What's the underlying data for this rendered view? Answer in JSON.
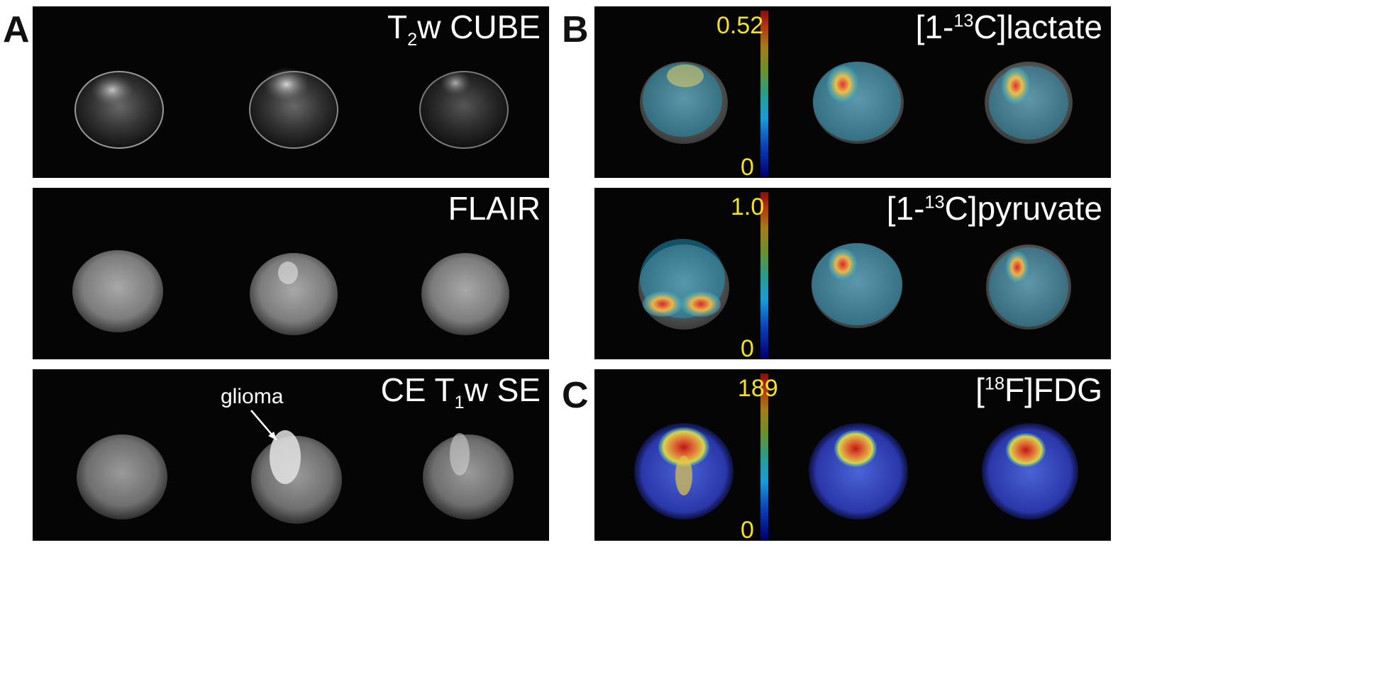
{
  "panel_letters": {
    "a": "A",
    "b": "B",
    "c": "C"
  },
  "panels": {
    "t2w": {
      "title_prefix": "T",
      "title_sub": "2",
      "title_suffix": "w CUBE"
    },
    "flair": {
      "title": "FLAIR"
    },
    "ce_t1w": {
      "title_prefix": "CE T",
      "title_sub": "1",
      "title_suffix": "w SE",
      "annotation": "glioma"
    },
    "lactate": {
      "title_prefix": "[1-",
      "title_sup": "13",
      "title_suffix": "C]lactate",
      "scale_max": "0.52",
      "scale_min": "0"
    },
    "pyruvate": {
      "title_prefix": "[1-",
      "title_sup": "13",
      "title_suffix": "C]pyruvate",
      "scale_max": "1.0",
      "scale_min": "0"
    },
    "fdg": {
      "title_prefix": "[",
      "title_sup": "18",
      "title_suffix": "F]FDG",
      "scale_max": "189",
      "scale_min": "0"
    }
  },
  "colors": {
    "panel_background": "#050505",
    "scale_label": "#f2e02a",
    "title_text": "#ffffff"
  }
}
